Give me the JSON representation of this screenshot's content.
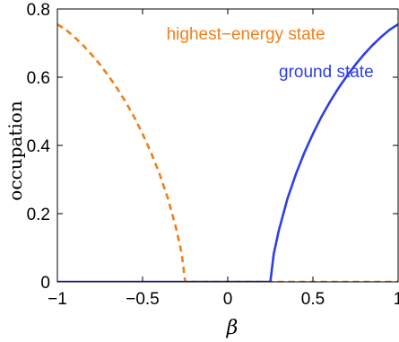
{
  "chart_data": {
    "type": "line",
    "xlabel": "β",
    "ylabel": "occupation",
    "xlim": [
      -1,
      1
    ],
    "ylim": [
      0,
      0.8
    ],
    "x_ticks": [
      "−1",
      "−0.5",
      "0",
      "0.5",
      "1"
    ],
    "x_tick_values": [
      -1,
      -0.5,
      0,
      0.5,
      1
    ],
    "y_ticks": [
      "0",
      "0.2",
      "0.4",
      "0.6",
      "0.8"
    ],
    "y_tick_values": [
      0,
      0.2,
      0.4,
      0.6,
      0.8
    ],
    "grid": false,
    "legend": "none",
    "series": [
      {
        "name": "highest−energy state",
        "color": "#f07f18",
        "style": "dashed",
        "x": [
          -1.0,
          -0.95,
          -0.9,
          -0.85,
          -0.8,
          -0.75,
          -0.7,
          -0.65,
          -0.6,
          -0.55,
          -0.5,
          -0.45,
          -0.4,
          -0.35,
          -0.3,
          -0.27,
          -0.25,
          -0.2,
          0.0,
          0.25,
          0.5,
          0.75,
          1.0
        ],
        "y": [
          0.755,
          0.739,
          0.718,
          0.694,
          0.667,
          0.637,
          0.604,
          0.568,
          0.528,
          0.484,
          0.434,
          0.379,
          0.316,
          0.243,
          0.151,
          0.082,
          0.0,
          0.0,
          0.0,
          0.0,
          0.0,
          0.0,
          0.0
        ]
      },
      {
        "name": "ground state",
        "color": "#2e3ee6",
        "style": "solid",
        "x": [
          -1.0,
          -0.5,
          0.0,
          0.25,
          0.27,
          0.3,
          0.35,
          0.4,
          0.45,
          0.5,
          0.55,
          0.6,
          0.65,
          0.7,
          0.75,
          0.8,
          0.85,
          0.9,
          0.95,
          1.0
        ],
        "y": [
          0.0,
          0.0,
          0.0,
          0.0,
          0.082,
          0.151,
          0.243,
          0.316,
          0.379,
          0.434,
          0.484,
          0.528,
          0.568,
          0.604,
          0.637,
          0.667,
          0.694,
          0.718,
          0.739,
          0.755
        ]
      }
    ],
    "annotations": [
      {
        "text": "highest−energy state",
        "color": "#f07f18",
        "x": -0.36,
        "y": 0.71
      },
      {
        "text": "ground state",
        "color": "#2e3ee6",
        "x": 0.3,
        "y": 0.6
      }
    ]
  }
}
